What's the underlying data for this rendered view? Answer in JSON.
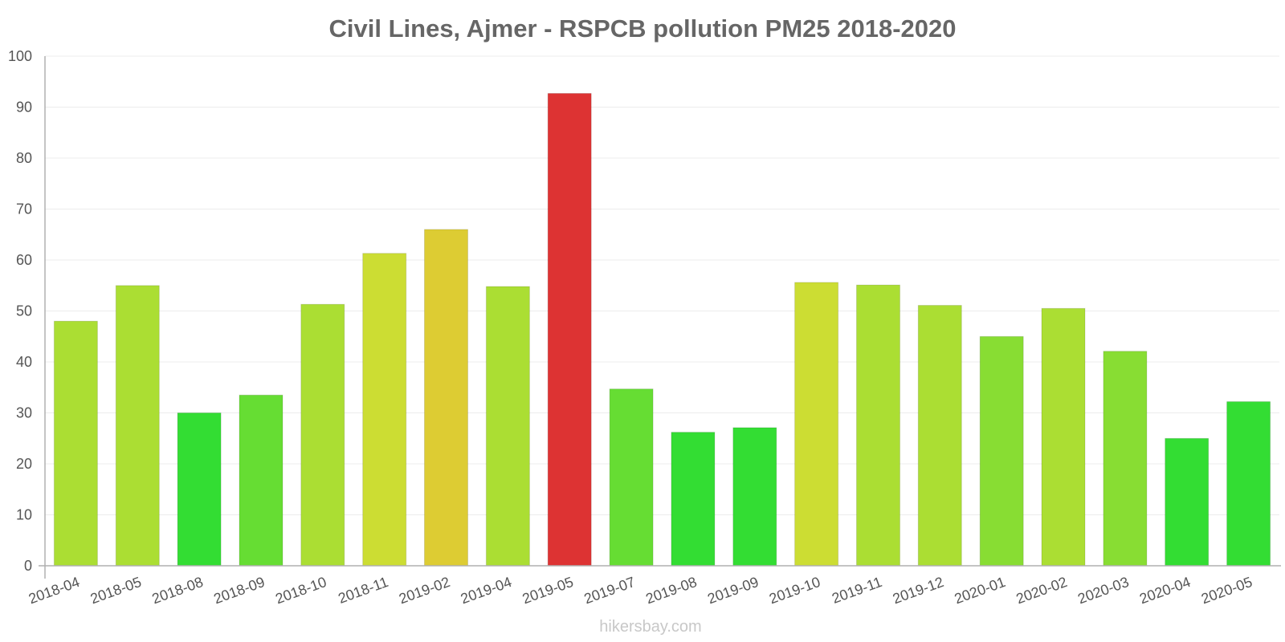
{
  "chart_data": {
    "type": "bar",
    "title": "Civil Lines,  Ajmer - RSPCB pollution PM25 2018-2020",
    "xlabel": "",
    "ylabel": "",
    "ylim": [
      0,
      100
    ],
    "yticks": [
      0,
      10,
      20,
      30,
      40,
      50,
      60,
      70,
      80,
      90,
      100
    ],
    "grid": true,
    "categories": [
      "2018-04",
      "2018-05",
      "2018-08",
      "2018-09",
      "2018-10",
      "2018-11",
      "2019-02",
      "2019-04",
      "2019-05",
      "2019-07",
      "2019-08",
      "2019-09",
      "2019-10",
      "2019-11",
      "2019-12",
      "2020-01",
      "2020-02",
      "2020-03",
      "2020-04",
      "2020-05"
    ],
    "values": [
      48,
      55,
      30,
      33.5,
      51.3,
      61.3,
      66,
      54.8,
      92.7,
      34.7,
      26.2,
      27.1,
      55.6,
      55.1,
      51.1,
      45,
      50.5,
      42.1,
      25,
      32.2
    ],
    "colors": [
      "#abde33",
      "#abde33",
      "#33dd33",
      "#66dd33",
      "#abde33",
      "#ccdd33",
      "#ddcc33",
      "#abde33",
      "#dd3333",
      "#66dd33",
      "#33dd33",
      "#33dd33",
      "#ccdd33",
      "#abde33",
      "#abde33",
      "#88dd33",
      "#abde33",
      "#88dd33",
      "#33dd33",
      "#33dd33"
    ]
  },
  "watermark": "hikersbay.com"
}
